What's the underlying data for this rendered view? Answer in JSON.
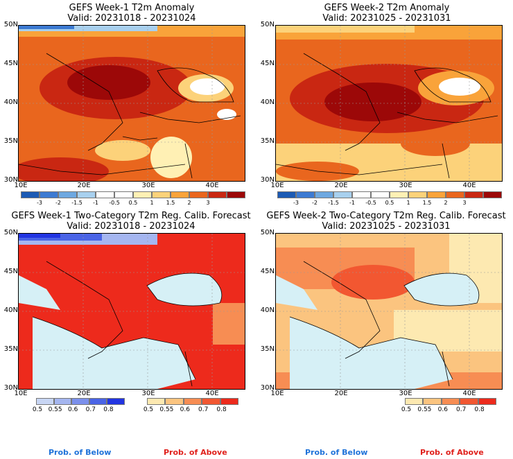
{
  "colors": {
    "anom": [
      "#1c5ab4",
      "#3c7ad2",
      "#6ea8e0",
      "#a8d0ee",
      "#ffffff",
      "#ffffff",
      "#fff0b4",
      "#fcd27a",
      "#f9a33a",
      "#e9661e",
      "#c92712",
      "#9c0808"
    ],
    "prob_below": [
      "#c8d6f4",
      "#a5b6f0",
      "#7b90ec",
      "#4a64e6",
      "#2235e2"
    ],
    "prob_above": [
      "#fde9b1",
      "#fbc47f",
      "#f78d53",
      "#f25731",
      "#ed2a1c"
    ],
    "sea": "#d6f0f6",
    "below_label": "#2073d9",
    "above_label": "#e0211c"
  },
  "panels": [
    {
      "title": "GEFS Week-1 T2m Anomaly",
      "valid": "Valid: 20231018 - 20231024"
    },
    {
      "title": "GEFS Week-2 T2m Anomaly",
      "valid": "Valid: 20231025 - 20231031"
    },
    {
      "title": "GEFS Week-1 Two-Category T2m Reg. Calib. Forecast",
      "valid": "Valid: 20231018 - 20231024"
    },
    {
      "title": "GEFS Week-2 Two-Category T2m Reg. Calib. Forecast",
      "valid": "Valid: 20231025 - 20231031"
    }
  ],
  "lat_labels": [
    "50N",
    "45N",
    "40N",
    "35N",
    "30N"
  ],
  "lon_labels": [
    "10E",
    "20E",
    "30E",
    "40E"
  ],
  "anom_ticks": [
    "-3",
    "-2",
    "-1.5",
    "-1",
    "-0.5",
    "0.5",
    "1",
    "1.5",
    "2",
    "3"
  ],
  "prob_ticks": [
    "0.5",
    "0.55",
    "0.6",
    "0.7",
    "0.8"
  ],
  "legend": {
    "below": "Prob. of Below",
    "above": "Prob. of Above"
  }
}
